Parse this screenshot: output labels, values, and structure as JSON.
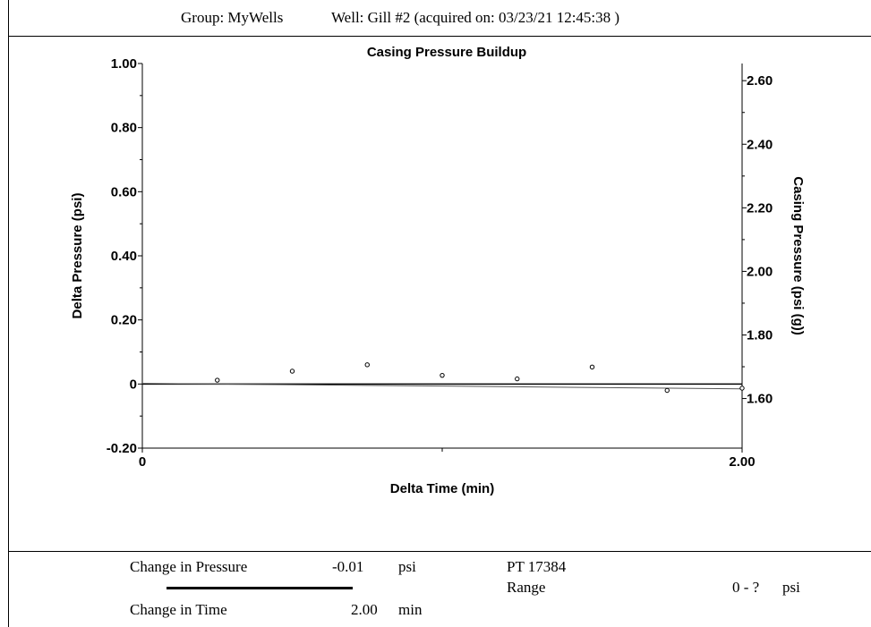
{
  "header": {
    "group": "Group: MyWells",
    "well": "Well: Gill #2 (acquired on: 03/23/21 12:45:38 )"
  },
  "chart_data": {
    "type": "scatter",
    "title": "Casing Pressure Buildup",
    "xlabel": "Delta Time (min)",
    "ylabel": "Delta Pressure (psi)",
    "y2label": "Casing Pressure (psi (g))",
    "xlim": [
      0,
      2.0
    ],
    "ylim": [
      -0.2,
      1.0
    ],
    "y2lim": [
      1.444,
      2.654
    ],
    "x_ticks": [
      "0",
      "2.00"
    ],
    "y_ticks": [
      {
        "value": 1.0,
        "label": "1.00"
      },
      {
        "value": 0.8,
        "label": "0.80"
      },
      {
        "value": 0.6,
        "label": "0.60"
      },
      {
        "value": 0.4,
        "label": "0.40"
      },
      {
        "value": 0.2,
        "label": "0.20"
      },
      {
        "value": 0,
        "label": "0"
      },
      {
        "value": -0.2,
        "label": "-0.20"
      }
    ],
    "y2_ticks": [
      {
        "value": 2.6,
        "label": "2.60"
      },
      {
        "value": 2.4,
        "label": "2.40"
      },
      {
        "value": 2.2,
        "label": "2.20"
      },
      {
        "value": 2.0,
        "label": "2.00"
      },
      {
        "value": 1.8,
        "label": "1.80"
      },
      {
        "value": 1.6,
        "label": "1.60"
      }
    ],
    "series": [
      {
        "type": "scatter",
        "x": [
          0.25,
          0.5,
          0.75,
          1.0,
          1.25,
          1.5,
          1.75,
          2.0
        ],
        "values": [
          0.012,
          0.04,
          0.06,
          0.027,
          0.016,
          0.053,
          -0.02,
          -0.013
        ]
      }
    ],
    "fit_line": {
      "x": [
        0,
        2.0
      ],
      "values": [
        0.002,
        -0.015
      ]
    },
    "zero_line": 0,
    "grid": false
  },
  "footer": {
    "change_pressure_label": "Change in Pressure",
    "change_pressure_value": "-0.01",
    "change_pressure_unit": "psi",
    "change_time_label": "Change in Time",
    "change_time_value": "2.00",
    "change_time_unit": "min",
    "pt_label": "PT 17384",
    "range_label": "Range",
    "range_value": "0 - ?",
    "range_unit": "psi"
  }
}
